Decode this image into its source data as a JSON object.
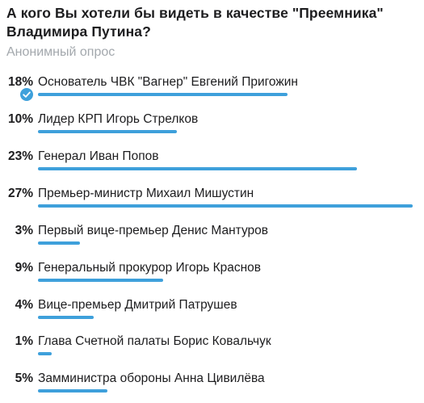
{
  "poll": {
    "question": "А кого Вы хотели бы видеть в качестве \"Преемника\" Владимира Путина?",
    "type_label": "Анонимный опрос",
    "accent_color": "#3ea0db",
    "options": [
      {
        "percent_label": "18%",
        "text": "Основатель ЧВК \"Вагнер\" Евгений Пригожин",
        "percent": 18,
        "chosen": true
      },
      {
        "percent_label": "10%",
        "text": "Лидер КРП Игорь Стрелков",
        "percent": 10,
        "chosen": false
      },
      {
        "percent_label": "23%",
        "text": "Генерал Иван Попов",
        "percent": 23,
        "chosen": false
      },
      {
        "percent_label": "27%",
        "text": "Премьер-министр Михаил Мишустин",
        "percent": 27,
        "chosen": false
      },
      {
        "percent_label": "3%",
        "text": "Первый вице-премьер Денис Мантуров",
        "percent": 3,
        "chosen": false
      },
      {
        "percent_label": "9%",
        "text": "Генеральный прокурор Игорь Краснов",
        "percent": 9,
        "chosen": false
      },
      {
        "percent_label": "4%",
        "text": "Вице-премьер Дмитрий Патрушев",
        "percent": 4,
        "chosen": false
      },
      {
        "percent_label": "1%",
        "text": "Глава Счетной палаты Борис Ковальчук",
        "percent": 1,
        "chosen": false
      },
      {
        "percent_label": "5%",
        "text": "Замминистра обороны Анна Цивилёва",
        "percent": 5,
        "chosen": false
      }
    ]
  }
}
